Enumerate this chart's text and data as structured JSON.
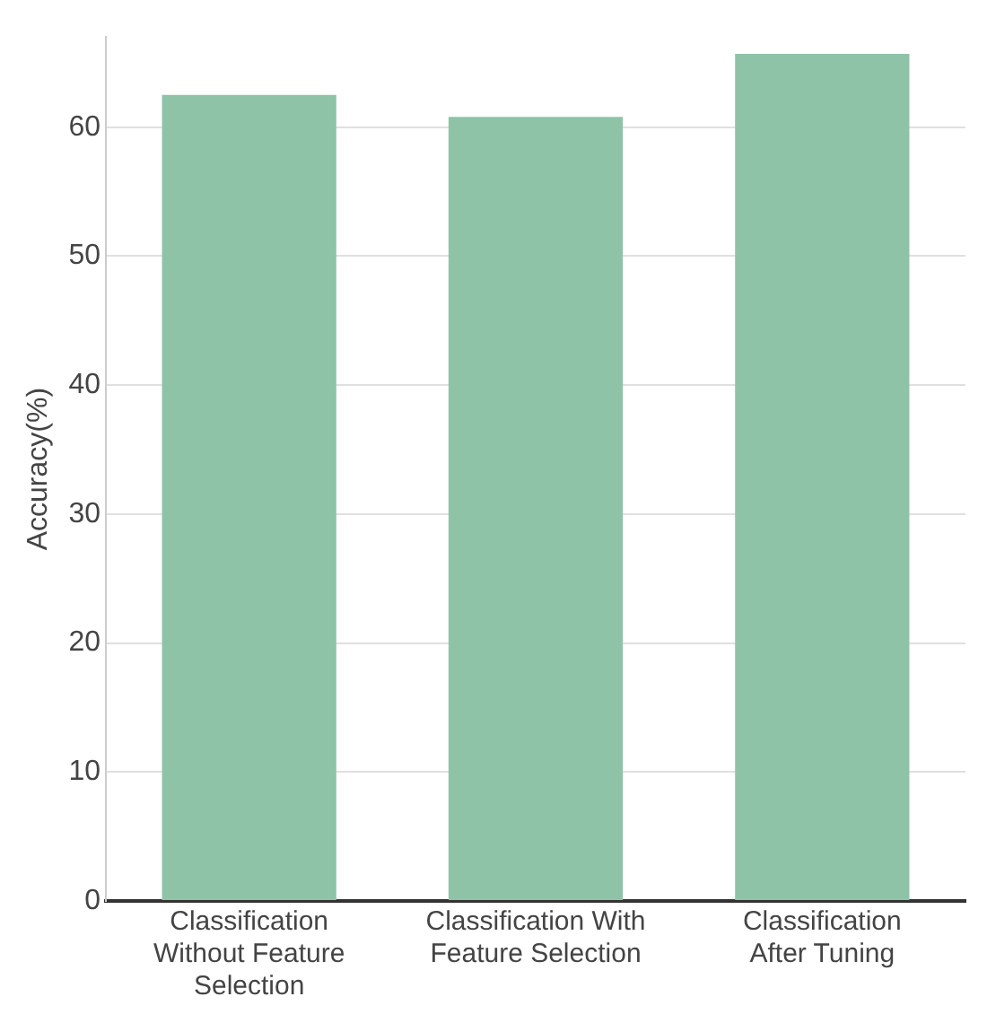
{
  "chart_data": {
    "type": "bar",
    "ylabel": "Accuracy(%)",
    "categories": [
      "Classification Without Feature Selection",
      "Classification With Feature Selection",
      "Classification After Tuning"
    ],
    "values": [
      62.5,
      60.8,
      65.7
    ],
    "color": "#8fc3a8",
    "ylim": [
      0,
      67
    ],
    "yticks": [
      0,
      10,
      20,
      30,
      40,
      50,
      60
    ],
    "grid": "y"
  }
}
